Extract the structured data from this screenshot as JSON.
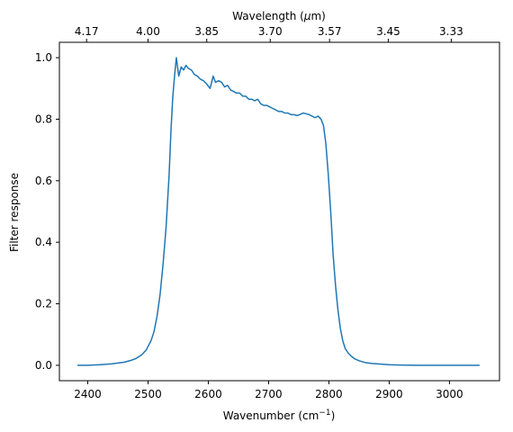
{
  "chart_data": {
    "type": "line",
    "title": "",
    "xlabel": "Wavenumber (cm⁻¹)",
    "ylabel": "Filter response",
    "top_xlabel": "Wavelength (μm)",
    "xlim": [
      2353,
      3083
    ],
    "ylim": [
      -0.05,
      1.05
    ],
    "grid": false,
    "x_ticks": [
      2400,
      2500,
      2600,
      2700,
      2800,
      2900,
      3000
    ],
    "x_tick_labels": [
      "2400",
      "2500",
      "2600",
      "2700",
      "2800",
      "2900",
      "3000"
    ],
    "y_ticks": [
      0.0,
      0.2,
      0.4,
      0.6,
      0.8,
      1.0
    ],
    "y_tick_labels": [
      "0.0",
      "0.2",
      "0.4",
      "0.6",
      "0.8",
      "1.0"
    ],
    "top_ticks": [
      4.17,
      4.0,
      3.85,
      3.7,
      3.57,
      3.45,
      3.33
    ],
    "top_tick_labels": [
      "4.17",
      "4.00",
      "3.85",
      "3.70",
      "3.57",
      "3.45",
      "3.33"
    ],
    "series": [
      {
        "color": "#1f77b4",
        "x": [
          2383,
          2400,
          2420,
          2440,
          2460,
          2470,
          2480,
          2490,
          2497,
          2505,
          2510,
          2515,
          2520,
          2525,
          2530,
          2535,
          2538,
          2541,
          2544,
          2547,
          2551,
          2555,
          2559,
          2563,
          2567,
          2572,
          2577,
          2582,
          2587,
          2592,
          2597,
          2603,
          2608,
          2612,
          2617,
          2622,
          2627,
          2632,
          2637,
          2642,
          2647,
          2652,
          2657,
          2662,
          2667,
          2672,
          2677,
          2682,
          2687,
          2692,
          2697,
          2702,
          2707,
          2712,
          2717,
          2722,
          2727,
          2732,
          2737,
          2742,
          2747,
          2752,
          2757,
          2762,
          2767,
          2772,
          2777,
          2782,
          2787,
          2791,
          2795,
          2799,
          2803,
          2807,
          2811,
          2815,
          2819,
          2823,
          2827,
          2832,
          2837,
          2842,
          2850,
          2860,
          2872,
          2885,
          2900,
          2920,
          2950,
          2990,
          3050
        ],
        "y": [
          0.0,
          0.0,
          0.002,
          0.005,
          0.01,
          0.015,
          0.022,
          0.035,
          0.05,
          0.08,
          0.11,
          0.16,
          0.23,
          0.33,
          0.45,
          0.62,
          0.76,
          0.87,
          0.94,
          1.0,
          0.94,
          0.97,
          0.96,
          0.975,
          0.965,
          0.96,
          0.945,
          0.94,
          0.93,
          0.925,
          0.915,
          0.9,
          0.94,
          0.92,
          0.925,
          0.92,
          0.905,
          0.91,
          0.895,
          0.89,
          0.885,
          0.885,
          0.875,
          0.875,
          0.865,
          0.865,
          0.86,
          0.865,
          0.85,
          0.845,
          0.845,
          0.84,
          0.835,
          0.83,
          0.825,
          0.825,
          0.82,
          0.82,
          0.815,
          0.815,
          0.812,
          0.815,
          0.82,
          0.818,
          0.815,
          0.81,
          0.805,
          0.81,
          0.8,
          0.78,
          0.72,
          0.62,
          0.5,
          0.36,
          0.26,
          0.18,
          0.12,
          0.08,
          0.055,
          0.04,
          0.03,
          0.022,
          0.015,
          0.009,
          0.006,
          0.004,
          0.002,
          0.001,
          0.0,
          0.0,
          0.0
        ]
      }
    ]
  }
}
